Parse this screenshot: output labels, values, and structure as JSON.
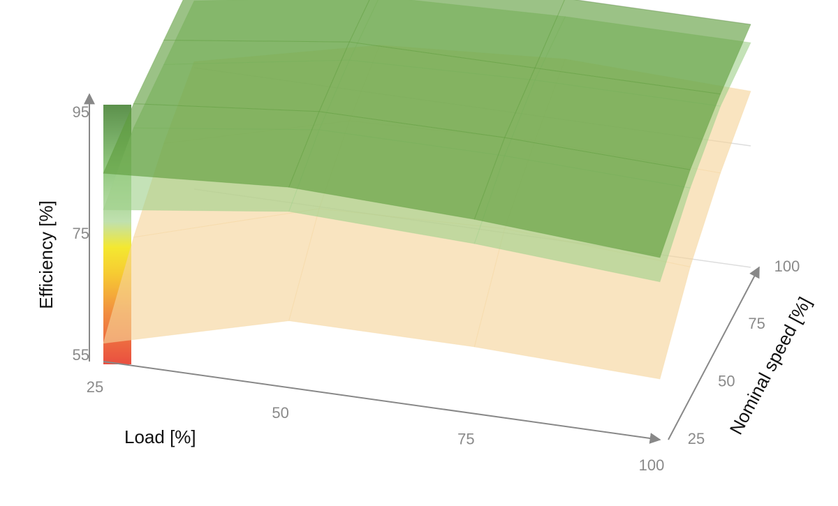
{
  "chart_data": {
    "type": "surface3d",
    "x_label": "Load [%]",
    "y_label": "Nominal speed [%]",
    "z_label": "Efficiency [%]",
    "x": [
      25,
      50,
      75,
      100
    ],
    "y": [
      25,
      50,
      75,
      100
    ],
    "xlim": [
      25,
      100
    ],
    "ylim": [
      25,
      100
    ],
    "zlim": [
      55,
      95
    ],
    "xticks": [
      25,
      50,
      75,
      100
    ],
    "yticks": [
      25,
      50,
      75,
      100
    ],
    "zticks": [
      55,
      75,
      95
    ],
    "grid": true,
    "series": [
      {
        "color": "#f6d39a",
        "values": [
          [
            58,
            66,
            66,
            65
          ],
          [
            66,
            75,
            76,
            74
          ],
          [
            72,
            80,
            81,
            80
          ],
          [
            76,
            83,
            85,
            84
          ]
        ]
      },
      {
        "color": "#9fd08a",
        "values": [
          [
            80,
            84,
            83,
            81
          ],
          [
            84,
            88,
            88,
            87
          ],
          [
            85,
            90,
            91,
            91
          ],
          [
            86,
            91,
            92,
            92
          ]
        ]
      },
      {
        "color": "#5e9c3c",
        "values": [
          [
            86,
            88,
            87,
            85
          ],
          [
            88,
            91,
            91,
            90
          ],
          [
            89,
            93,
            93,
            93
          ],
          [
            90,
            94,
            95,
            95
          ]
        ]
      }
    ]
  }
}
